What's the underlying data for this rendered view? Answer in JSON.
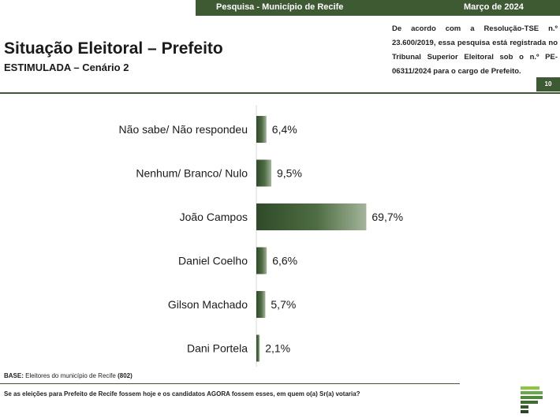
{
  "header": {
    "survey_label": "Pesquisa - Município de Recife",
    "date": "Março de 2024",
    "legal_note": "De acordo com a Resolução-TSE n.º 23.600/2019, essa pesquisa está registrada no Tribunal Superior Eleitoral sob o n.º PE-06311/2024 para o cargo de Prefeito.",
    "page_number": "10"
  },
  "chart_data": {
    "type": "bar",
    "orientation": "horizontal",
    "title": "Situação Eleitoral – Prefeito",
    "subtitle": "ESTIMULADA – Cenário 2",
    "categories": [
      "Não sabe/ Não respondeu",
      "Nenhum/ Branco/ Nulo",
      "João Campos",
      "Daniel Coelho",
      "Gilson Machado",
      "Dani Portela"
    ],
    "values": [
      6.4,
      9.5,
      69.7,
      6.6,
      5.7,
      2.1
    ],
    "value_labels": [
      "6,4%",
      "9,5%",
      "69,7%",
      "6,6%",
      "5,7%",
      "2,1%"
    ],
    "unit": "%",
    "xlim": [
      0,
      100
    ],
    "grid": false,
    "bar_color": "#3d5a33"
  },
  "footer": {
    "base_label": "BASE:",
    "base_text": "Eleitores do município de Recife",
    "base_n": "(802)",
    "question": "Se as eleições para Prefeito de Recife fossem hoje e os candidatos AGORA fossem esses, em quem o(a) Sr(a) votaria?"
  },
  "colors": {
    "primary_green": "#3d5a33",
    "text": "#1a1a1a"
  }
}
